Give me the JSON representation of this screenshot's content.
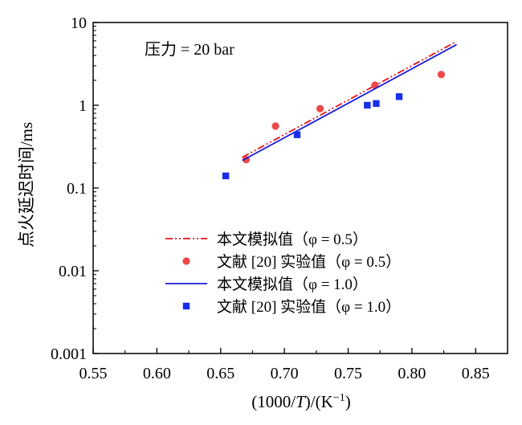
{
  "chart_data": {
    "type": "scatter",
    "annotation": "压力 = 20 bar",
    "xlabel": "(1000/T)/(K⁻¹)",
    "ylabel": "点火延迟时间/ms",
    "xlim": [
      0.55,
      0.875
    ],
    "ylim": [
      0.001,
      10
    ],
    "yscale": "log",
    "x_ticks": [
      0.55,
      0.6,
      0.65,
      0.7,
      0.75,
      0.8,
      0.85
    ],
    "x_tick_labels": [
      "0.55",
      "0.60",
      "0.65",
      "0.70",
      "0.75",
      "0.80",
      "0.85"
    ],
    "y_ticks": [
      0.001,
      0.01,
      0.1,
      1,
      10
    ],
    "y_tick_labels": [
      "0.001",
      "0.01",
      "0.1",
      "1",
      "10"
    ],
    "legend_position": "bottom-right",
    "series": [
      {
        "name": "本文模拟值（φ = 0.5）",
        "kind": "line",
        "style": "dash-dot-dot",
        "color": "#e8111a",
        "x": [
          0.667,
          0.835
        ],
        "y": [
          0.235,
          5.9
        ]
      },
      {
        "name": "文献 [20] 实验值（φ = 0.5）",
        "kind": "scatter",
        "marker": "circle",
        "color": "#ef4848",
        "x": [
          0.67,
          0.693,
          0.728,
          0.771,
          0.823
        ],
        "y": [
          0.22,
          0.56,
          0.91,
          1.75,
          2.35
        ]
      },
      {
        "name": "本文模拟值（φ = 1.0）",
        "kind": "line",
        "style": "solid",
        "color": "#1a1adb",
        "x": [
          0.667,
          0.835
        ],
        "y": [
          0.215,
          5.4
        ]
      },
      {
        "name": "文献 [20] 实验值（φ = 1.0）",
        "kind": "scatter",
        "marker": "square",
        "color": "#1a2eea",
        "x": [
          0.654,
          0.71,
          0.765,
          0.772,
          0.79
        ],
        "y": [
          0.14,
          0.44,
          1.0,
          1.05,
          1.27
        ]
      }
    ]
  }
}
